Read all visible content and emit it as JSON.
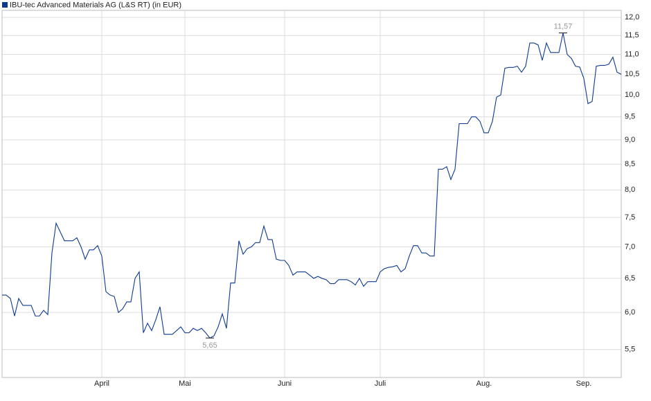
{
  "chart_data": {
    "type": "line",
    "series": [
      {
        "name": "IBU-tec Advanced Materials AG (L&S RT) (in EUR)",
        "color": "#0d3a8e",
        "values": [
          6.25,
          6.25,
          6.2,
          5.95,
          6.2,
          6.1,
          6.1,
          6.1,
          5.95,
          5.95,
          6.03,
          5.97,
          6.9,
          7.4,
          7.25,
          7.1,
          7.1,
          7.1,
          7.15,
          7.0,
          6.8,
          6.95,
          6.95,
          7.02,
          6.85,
          6.3,
          6.25,
          6.23,
          6.0,
          6.05,
          6.15,
          6.15,
          6.5,
          6.6,
          5.72,
          5.85,
          5.75,
          5.9,
          6.08,
          5.7,
          5.7,
          5.7,
          5.75,
          5.8,
          5.72,
          5.72,
          5.78,
          5.75,
          5.78,
          5.72,
          5.65,
          5.68,
          5.8,
          5.98,
          5.78,
          6.43,
          6.43,
          7.1,
          6.88,
          6.97,
          7.0,
          7.07,
          7.07,
          7.35,
          7.12,
          7.12,
          6.8,
          6.78,
          6.78,
          6.7,
          6.55,
          6.6,
          6.6,
          6.6,
          6.55,
          6.5,
          6.53,
          6.5,
          6.48,
          6.42,
          6.42,
          6.48,
          6.48,
          6.48,
          6.45,
          6.4,
          6.5,
          6.38,
          6.45,
          6.45,
          6.45,
          6.6,
          6.65,
          6.67,
          6.68,
          6.7,
          6.6,
          6.65,
          6.85,
          7.02,
          7.02,
          6.9,
          6.9,
          6.85,
          6.85,
          8.4,
          8.4,
          8.45,
          8.2,
          8.4,
          9.35,
          9.35,
          9.35,
          9.5,
          9.5,
          9.4,
          9.15,
          9.15,
          9.4,
          9.95,
          10.0,
          10.65,
          10.67,
          10.67,
          10.7,
          10.55,
          10.7,
          11.3,
          11.3,
          11.25,
          10.85,
          11.3,
          11.05,
          11.05,
          11.05,
          11.57,
          11.0,
          10.9,
          10.7,
          10.68,
          10.4,
          9.8,
          9.85,
          10.7,
          10.72,
          10.72,
          10.75,
          10.93,
          10.55,
          10.5
        ]
      }
    ],
    "x": [
      0,
      1,
      2,
      3,
      4,
      5,
      6,
      7,
      8,
      9,
      10,
      11,
      12,
      13,
      14,
      15,
      16,
      17,
      18,
      19,
      20,
      21,
      22,
      23,
      24,
      25,
      26,
      27,
      28,
      29,
      30,
      31,
      32,
      33,
      34,
      35,
      36,
      37,
      38,
      39,
      40,
      41,
      42,
      43,
      44,
      45,
      46,
      47,
      48,
      49,
      50,
      51,
      52,
      53,
      54,
      55,
      56,
      57,
      58,
      59,
      60,
      61,
      62,
      63,
      64,
      65,
      66,
      67,
      68,
      69,
      70,
      71,
      72,
      73,
      74,
      75,
      76,
      77,
      78,
      79,
      80,
      81,
      82,
      83,
      84,
      85,
      86,
      87,
      88,
      89,
      90,
      91,
      92,
      93,
      94,
      95,
      96,
      97,
      98,
      99,
      100,
      101,
      102,
      103,
      104,
      105,
      106,
      107,
      108,
      109,
      110,
      111,
      112,
      113,
      114,
      115,
      116,
      117,
      118,
      119,
      120,
      121,
      122,
      123,
      124,
      125,
      126,
      127,
      128,
      129,
      130,
      131,
      132,
      133,
      134,
      135,
      136,
      137,
      138,
      139,
      140,
      141,
      142,
      143,
      144,
      145,
      146,
      147,
      148,
      149
    ],
    "xlim": [
      0,
      149
    ],
    "xticks": [
      {
        "value": 24,
        "label": "April"
      },
      {
        "value": 44,
        "label": "Mai"
      },
      {
        "value": 68,
        "label": "Juni"
      },
      {
        "value": 91,
        "label": "Juli"
      },
      {
        "value": 116,
        "label": "Aug."
      },
      {
        "value": 140,
        "label": "Sep."
      }
    ],
    "ylim": [
      5.15,
      12.2
    ],
    "log_scale": true,
    "grid": true,
    "yticks": [
      {
        "value": 5.5,
        "label": "5,5"
      },
      {
        "value": 6,
        "label": "6,0"
      },
      {
        "value": 6.5,
        "label": "6,5"
      },
      {
        "value": 7,
        "label": "7,0"
      },
      {
        "value": 7.5,
        "label": "7,5"
      },
      {
        "value": 8,
        "label": "8,0"
      },
      {
        "value": 8.5,
        "label": "8,5"
      },
      {
        "value": 9,
        "label": "9,0"
      },
      {
        "value": 9.5,
        "label": "9,5"
      },
      {
        "value": 10,
        "label": "10,0"
      },
      {
        "value": 10.5,
        "label": "10,5"
      },
      {
        "value": 11,
        "label": "11,0"
      },
      {
        "value": 11.5,
        "label": "11,5"
      },
      {
        "value": 12,
        "label": "12,0"
      }
    ],
    "annotations": [
      {
        "text": "11,57",
        "x": 135,
        "y": 11.57,
        "position": "above"
      },
      {
        "text": "5,65",
        "x": 50,
        "y": 5.65,
        "position": "below"
      }
    ]
  }
}
